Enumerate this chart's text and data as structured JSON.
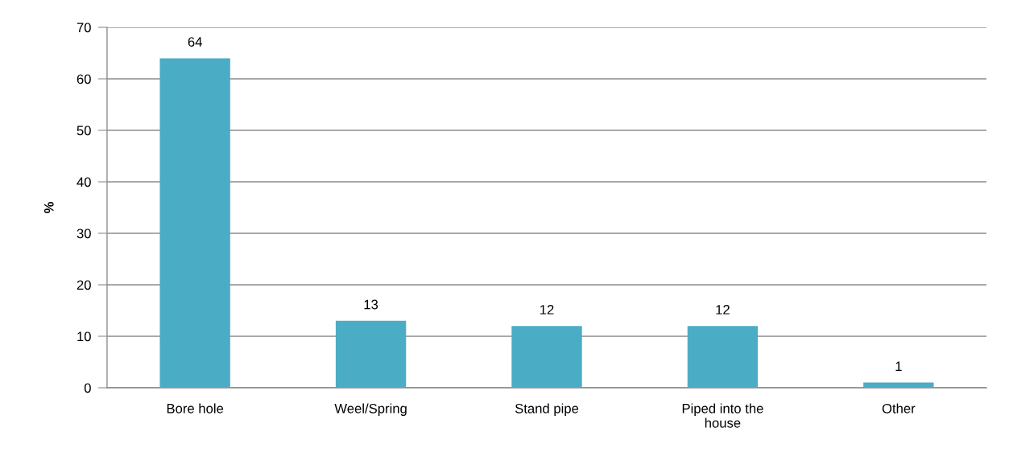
{
  "chart_data": {
    "type": "bar",
    "ylabel": "%",
    "categories": [
      "Bore hole",
      "Weel/Spring",
      "Stand pipe",
      "Piped into the\nhouse",
      "Other"
    ],
    "values": [
      64,
      13,
      12,
      12,
      1
    ],
    "color": "#4bacc6",
    "ylim": [
      0,
      70
    ],
    "yticks": [
      0,
      10,
      20,
      30,
      40,
      50,
      60,
      70
    ],
    "grid": "y",
    "data_labels": true
  }
}
